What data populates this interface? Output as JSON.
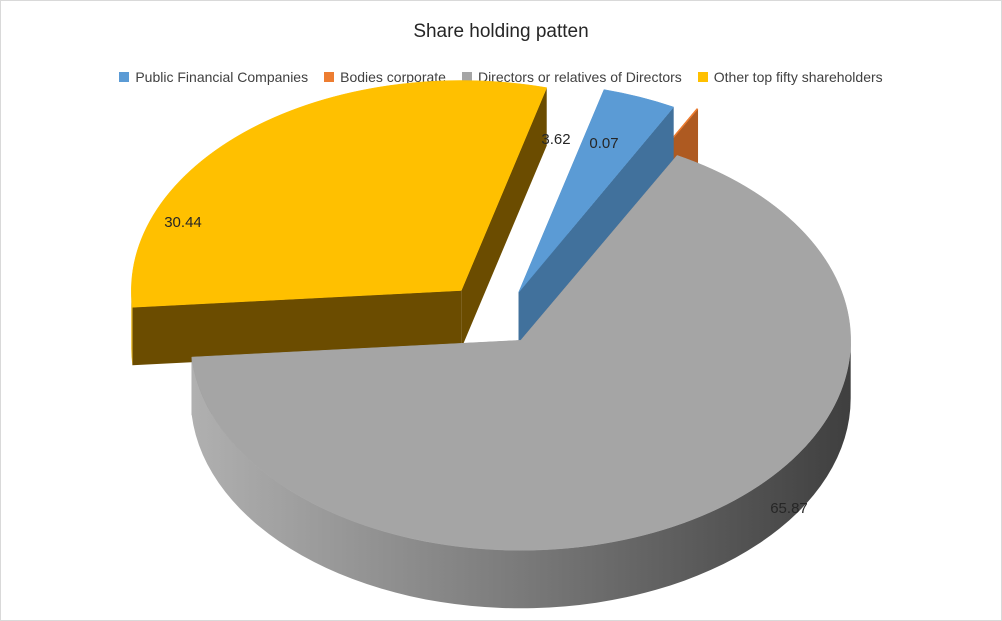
{
  "chart_data": {
    "type": "pie",
    "title": "Share holding patten",
    "legend_position": "top",
    "categories": [
      "Public Financial Companies",
      "Bodies corporate",
      "Directors or relatives of Directors",
      "Other top fifty shareholders"
    ],
    "values": [
      3.62,
      0.07,
      65.87,
      30.44
    ],
    "data_labels": [
      "3.62",
      "0.07",
      "65.87",
      "30.44"
    ],
    "colors": [
      "#5b9bd5",
      "#ed7d31",
      "#a5a5a5",
      "#ffc000"
    ],
    "style": "3d-exploded"
  }
}
